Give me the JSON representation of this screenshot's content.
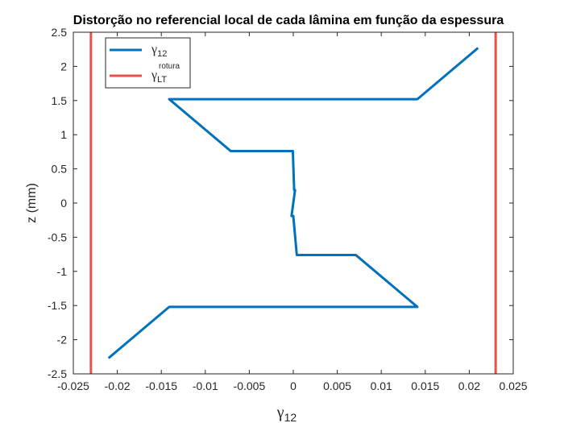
{
  "chart_data": {
    "type": "line",
    "title": "Distorção no referencial local de cada lâmina em função da espessura",
    "xlabel": {
      "base": "γ",
      "sub": "12"
    },
    "ylabel": "z (mm)",
    "xlim": [
      -0.025,
      0.025
    ],
    "ylim": [
      -2.5,
      2.5
    ],
    "xticks": [
      -0.025,
      -0.02,
      -0.015,
      -0.01,
      -0.005,
      0,
      0.005,
      0.01,
      0.015,
      0.02,
      0.025
    ],
    "xtick_labels": [
      "-0.025",
      "-0.02",
      "-0.015",
      "-0.01",
      "-0.005",
      "0",
      "0.005",
      "0.01",
      "0.015",
      "0.02",
      "0.025"
    ],
    "yticks": [
      -2.5,
      -2,
      -1.5,
      -1,
      -0.5,
      0,
      0.5,
      1,
      1.5,
      2,
      2.5
    ],
    "ytick_labels": [
      "-2.5",
      "-2",
      "-1.5",
      "-1",
      "-0.5",
      "0",
      "0.5",
      "1",
      "1.5",
      "2",
      "2.5"
    ],
    "grid": false,
    "box": true,
    "legend_position": "top-left",
    "series": [
      {
        "color": "#0072BD",
        "legend": {
          "base": "γ",
          "sub": "12"
        },
        "x": [
          0.021,
          0.0141,
          -0.0141,
          -0.0071,
          -5e-05,
          0.0001,
          0.0002,
          -0.0002,
          0.0,
          0.0004,
          0.0071,
          0.0141,
          -0.0141,
          -0.021
        ],
        "y": [
          2.27,
          1.52,
          1.52,
          0.76,
          0.76,
          0.19,
          0.19,
          -0.19,
          -0.19,
          -0.76,
          -0.76,
          -1.52,
          -1.52,
          -2.27
        ]
      },
      {
        "color": "#E8514A",
        "legend": {
          "base": "γ",
          "sub": "LT",
          "sup": "rotura"
        },
        "x": [
          -0.023,
          -0.023
        ],
        "y": [
          -2.5,
          2.5
        ]
      },
      {
        "color": "#E8514A",
        "x": [
          0.023,
          0.023
        ],
        "y": [
          -2.5,
          2.5
        ]
      }
    ]
  }
}
